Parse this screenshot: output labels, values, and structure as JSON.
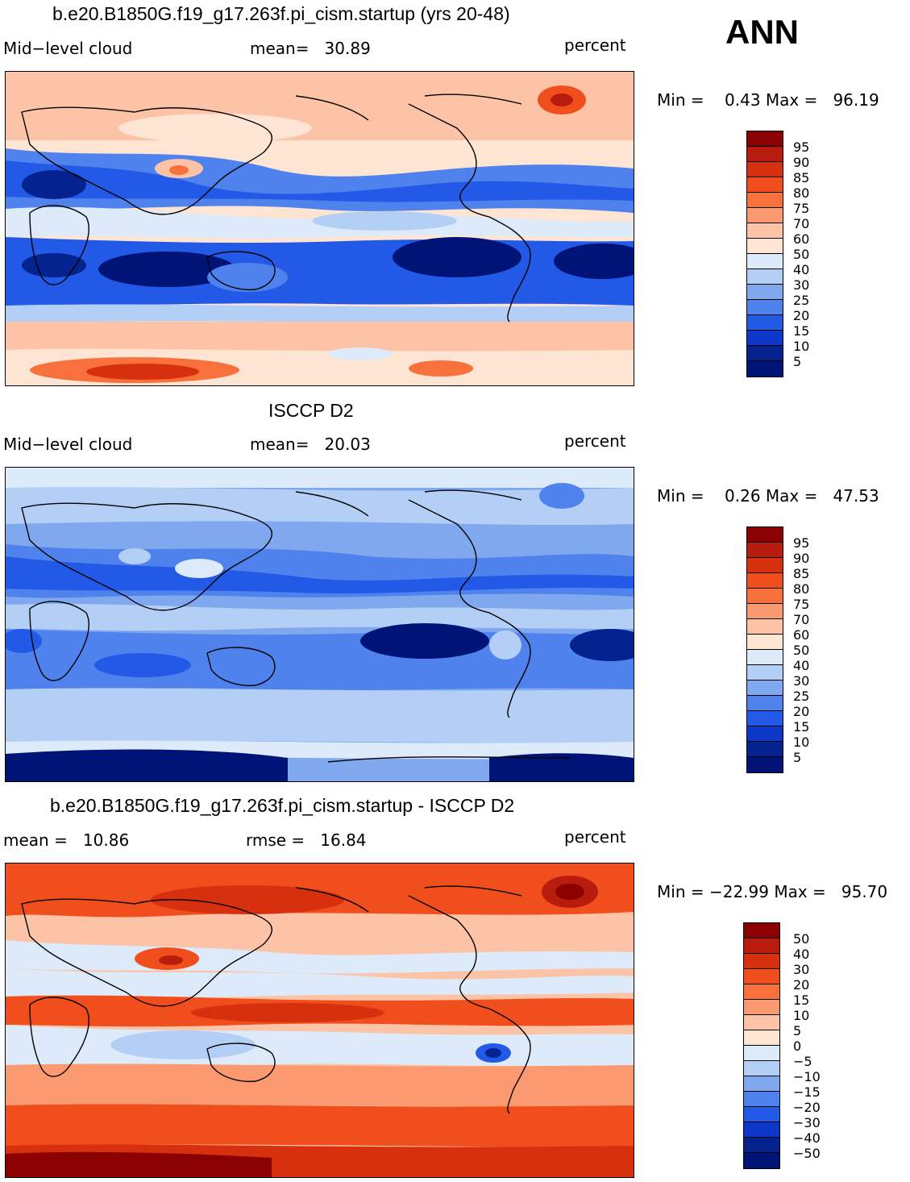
{
  "season": "ANN",
  "panels": [
    {
      "title": "b.e20.B1850G.f19_g17.263f.pi_cism.startup (yrs 20-48)",
      "left_label": "Mid−level cloud",
      "center_label": "mean=   30.89",
      "units": "percent",
      "minmax": "Min =    0.43 Max =   96.19",
      "colorbar_labels": [
        "95",
        "90",
        "85",
        "80",
        "75",
        "70",
        "60",
        "50",
        "40",
        "30",
        "25",
        "20",
        "15",
        "10",
        "5"
      ],
      "colors": [
        "#8b0000",
        "#b71c0c",
        "#d6300f",
        "#f04e1c",
        "#f8703b",
        "#fb9a70",
        "#fdc3a6",
        "#fee4d2",
        "#ddeafa",
        "#b4cff5",
        "#7fa8ef",
        "#4f82ec",
        "#2259e6",
        "#0d37c8",
        "#05238f",
        "#001478"
      ]
    },
    {
      "title": "ISCCP D2",
      "left_label": "Mid−level cloud",
      "center_label": "mean=   20.03",
      "units": "percent",
      "minmax": "Min =    0.26 Max =   47.53",
      "colorbar_labels": [
        "95",
        "90",
        "85",
        "80",
        "75",
        "70",
        "60",
        "50",
        "40",
        "30",
        "25",
        "20",
        "15",
        "10",
        "5"
      ],
      "colors": [
        "#8b0000",
        "#b71c0c",
        "#d6300f",
        "#f04e1c",
        "#f8703b",
        "#fb9a70",
        "#fdc3a6",
        "#fee4d2",
        "#ddeafa",
        "#b4cff5",
        "#7fa8ef",
        "#4f82ec",
        "#2259e6",
        "#0d37c8",
        "#05238f",
        "#001478"
      ]
    },
    {
      "title": "b.e20.B1850G.f19_g17.263f.pi_cism.startup - ISCCP D2",
      "left_label": "mean =   10.86",
      "center_label": "rmse =   16.84",
      "units": "percent",
      "minmax": "Min = −22.99 Max =   95.70",
      "colorbar_labels": [
        "50",
        "40",
        "30",
        "20",
        "15",
        "10",
        "5",
        "0",
        "−5",
        "−10",
        "−15",
        "−20",
        "−30",
        "−40",
        "−50"
      ],
      "colors": [
        "#8b0000",
        "#b71c0c",
        "#d6300f",
        "#f04e1c",
        "#f8703b",
        "#fb9a70",
        "#fdc3a6",
        "#fee4d2",
        "#ddeafa",
        "#b4cff5",
        "#7fa8ef",
        "#4f82ec",
        "#2259e6",
        "#0d37c8",
        "#05238f",
        "#001478"
      ]
    }
  ]
}
